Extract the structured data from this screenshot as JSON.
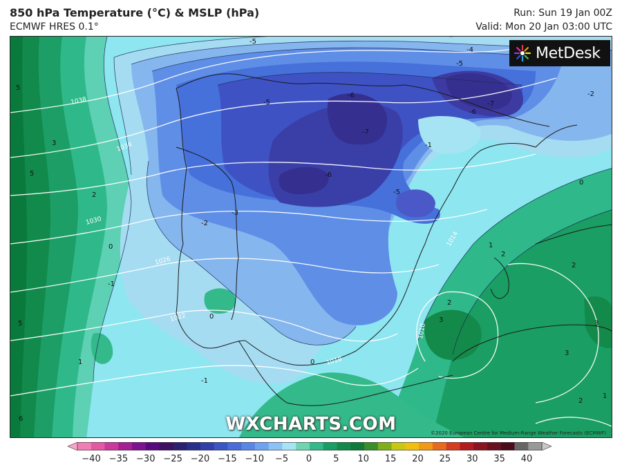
{
  "header": {
    "title": "850 hPa Temperature (°C) & MSLP (hPa)",
    "subtitle": "ECMWF HRES 0.1°",
    "run": "Run: Sun 19 Jan 00Z",
    "valid": "Valid: Mon 20 Jan 03:00 UTC"
  },
  "branding": {
    "logo_text": "MetDesk",
    "watermark": "WXCHARTS.COM",
    "copyright": "©2020 European Centre for Medium-Range Weather Forecasts (ECMWF)"
  },
  "map": {
    "temperature_labels": [
      "-5",
      "-4",
      "-5",
      "-2",
      "-6",
      "-7",
      "-7",
      "-5",
      "-6",
      "-1",
      "-6",
      "-5",
      "0",
      "-3",
      "-2",
      "5",
      "3",
      "5",
      "2",
      "0",
      "-1",
      "5",
      "1",
      "6",
      "-1",
      "0",
      "0",
      "1",
      "2",
      "2",
      "2",
      "3",
      "3",
      "3",
      "2",
      "1"
    ],
    "pressure_labels": [
      "1038",
      "1034",
      "1030",
      "1026",
      "1022",
      "1018",
      "1014",
      "1010"
    ]
  },
  "colorbar": {
    "ticks": [
      "−40",
      "−35",
      "−30",
      "−25",
      "−20",
      "−15",
      "−10",
      "−5",
      "0",
      "5",
      "10",
      "15",
      "20",
      "25",
      "30",
      "35",
      "40"
    ],
    "colors": [
      "#f7a8c8",
      "#ef7fb4",
      "#e25aa4",
      "#c93a9a",
      "#a51f93",
      "#7e1291",
      "#5a0a80",
      "#3d1060",
      "#2c2070",
      "#272f8a",
      "#3040a8",
      "#3b55c4",
      "#4a6bd8",
      "#5a86e4",
      "#6fa3ee",
      "#8cc2f4",
      "#a6e4f4",
      "#6fd4b0",
      "#33b98a",
      "#1a9e63",
      "#148a4a",
      "#0f7a3a",
      "#3a8f2a",
      "#7fb01c",
      "#c8c814",
      "#f0c010",
      "#f09a18",
      "#e86a1c",
      "#d63c20",
      "#b01c20",
      "#8a1420",
      "#6a1020",
      "#4a0c18",
      "#666666",
      "#999999",
      "#c8c8c8"
    ]
  }
}
